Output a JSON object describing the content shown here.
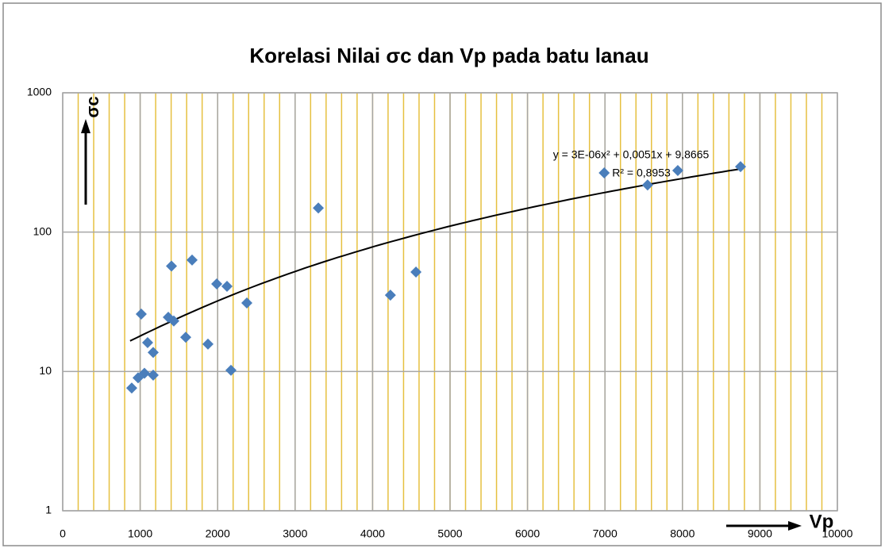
{
  "chart_data": {
    "type": "scatter",
    "title": "Korelasi Nilai σc dan Vp pada batu lanau",
    "x_label": "Vp",
    "y_label": "σc",
    "x": [
      891,
      973,
      1055,
      1168,
      1014,
      1096,
      1168,
      1363,
      1434,
      1404,
      1670,
      1588,
      1875,
      1988,
      2121,
      2172,
      2377,
      3300,
      4230,
      4560,
      6990,
      7550,
      7940,
      8750
    ],
    "series": [
      {
        "color": "#4a7ebb",
        "values": [
          7.6,
          9.0,
          9.7,
          9.4,
          25.8,
          16.1,
          13.7,
          24.5,
          23,
          57,
          63,
          17.6,
          15.7,
          42.5,
          40.8,
          10.2,
          31,
          149,
          35.3,
          51.7,
          266,
          218,
          277,
          295
        ]
      }
    ],
    "trendline": {
      "type": "polynomial",
      "coefficients": [
        3e-06,
        0.0051,
        9.8665
      ],
      "x": [
        870,
        8750
      ],
      "color": "#000000",
      "equation": "y = 3E-06x² + 0,0051x + 9,8665",
      "r2": "R² = 0,8953"
    },
    "xlim": [
      0,
      10000
    ],
    "xticks": [
      0,
      1000,
      2000,
      3000,
      4000,
      5000,
      6000,
      7000,
      8000,
      9000,
      10000
    ],
    "ylim": [
      1,
      1000
    ],
    "yticks": [
      1,
      10,
      100,
      1000
    ],
    "log_y": true,
    "grid": true,
    "grid_color": "#a6a6a6",
    "minor_grid_step": 200,
    "minor_grid_color": "#e6c040"
  }
}
